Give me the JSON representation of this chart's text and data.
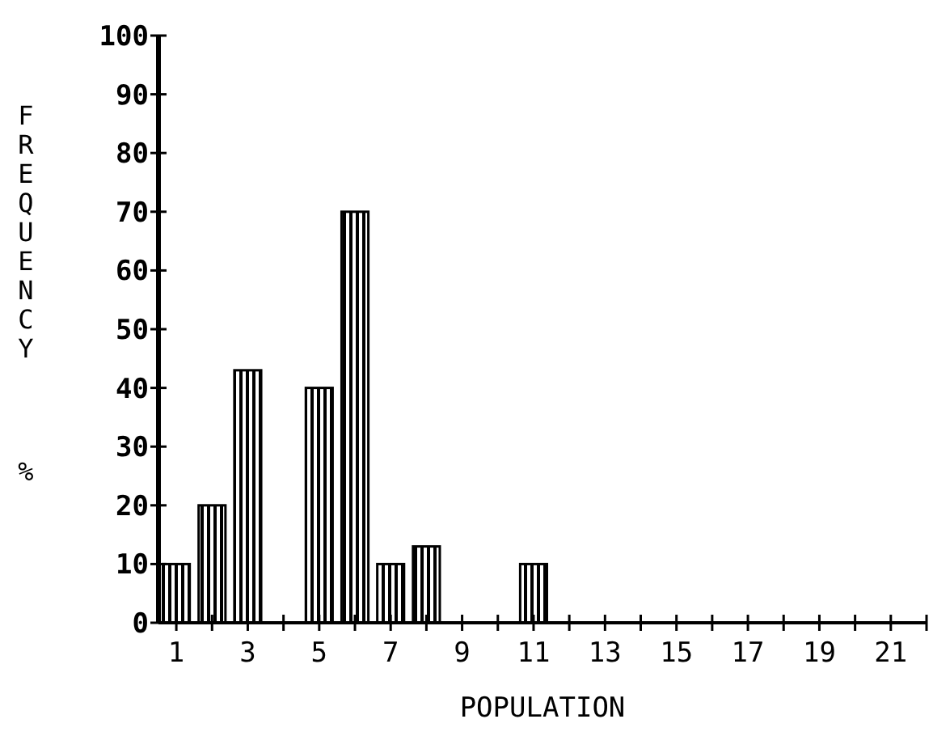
{
  "chart_data": {
    "type": "bar",
    "xlabel": "POPULATION",
    "ylabel": "FREQUENCY %",
    "x": [
      1,
      2,
      3,
      5,
      6,
      7,
      8,
      11
    ],
    "values": [
      10,
      20,
      43,
      40,
      70,
      10,
      13,
      10
    ],
    "color": "#000000",
    "xlim": [
      0.5,
      22
    ],
    "xticks": [
      1,
      {
        "value": 2,
        "label": null
      },
      3,
      {
        "value": 4,
        "label": null
      },
      5,
      {
        "value": 6,
        "label": null
      },
      7,
      {
        "value": 8,
        "label": null
      },
      9,
      {
        "value": 10,
        "label": null
      },
      11,
      {
        "value": 12,
        "label": null
      },
      13,
      {
        "value": 14,
        "label": null
      },
      15,
      {
        "value": 16,
        "label": null
      },
      17,
      {
        "value": 18,
        "label": null
      },
      19,
      {
        "value": 20,
        "label": null
      },
      21,
      {
        "value": 22,
        "label": null
      }
    ],
    "ylim": [
      0,
      100
    ],
    "yticks": [
      0,
      10,
      20,
      30,
      40,
      50,
      60,
      70,
      80,
      90,
      100
    ],
    "grid": false
  }
}
